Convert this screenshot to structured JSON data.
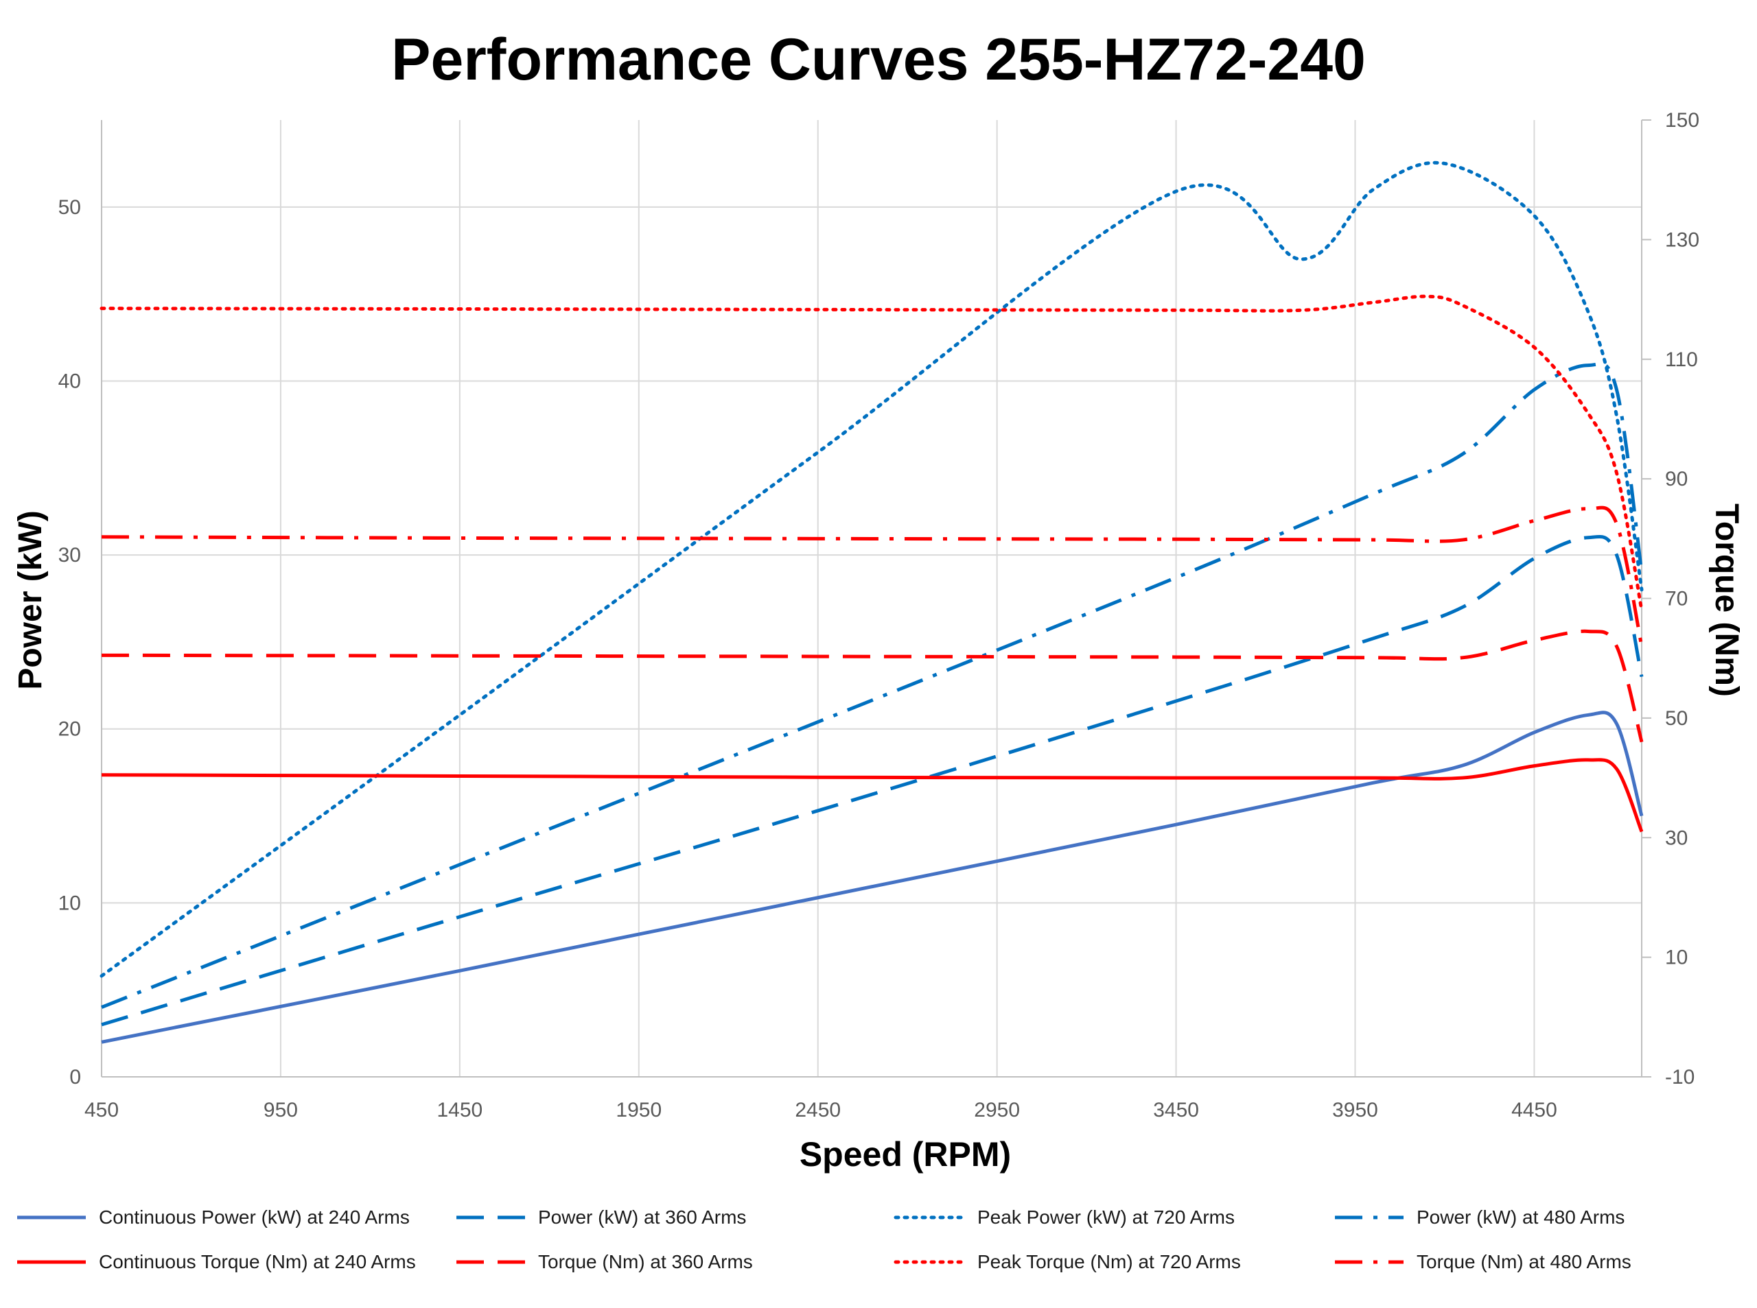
{
  "chart_data": {
    "type": "line",
    "title": "Performance Curves 255-HZ72-240",
    "xlabel": "Speed (RPM)",
    "ylabel_left": "Power (kW)",
    "ylabel_right": "Torque (Nm)",
    "xlim": [
      450,
      4750
    ],
    "ylim_left": [
      0,
      55
    ],
    "ylim_right": [
      -10,
      150
    ],
    "x_ticks": [
      450,
      950,
      1450,
      1950,
      2450,
      2950,
      3450,
      3950,
      4450
    ],
    "y_left_ticks": [
      0,
      10,
      20,
      30,
      40,
      50
    ],
    "y_right_ticks": [
      -10,
      10,
      30,
      50,
      70,
      90,
      110,
      130,
      150
    ],
    "grid": true,
    "legend_position": "bottom",
    "series": [
      {
        "name": "Continuous Power (kW) at 240 Arms",
        "axis": "left",
        "color": "#4472C4",
        "dash": "solid",
        "x": [
          450,
          1450,
          2450,
          3450,
          4000,
          4250,
          4450,
          4600,
          4680,
          4750
        ],
        "y": [
          2.0,
          6.1,
          10.3,
          14.5,
          16.9,
          17.9,
          19.8,
          20.8,
          20.3,
          15.0
        ]
      },
      {
        "name": "Power (kW) at 360 Arms",
        "axis": "left",
        "color": "#0070C0",
        "dash": "dash",
        "x": [
          450,
          1450,
          2450,
          3450,
          4000,
          4250,
          4450,
          4600,
          4680,
          4750
        ],
        "y": [
          3.0,
          9.2,
          15.3,
          21.6,
          25.2,
          27.0,
          29.8,
          31.0,
          30.0,
          23.0
        ]
      },
      {
        "name": "Peak Power (kW) at 720 Arms",
        "axis": "left",
        "color": "#0070C0",
        "dash": "dot",
        "x": [
          450,
          1450,
          2450,
          3450,
          3800,
          4000,
          4200,
          4450,
          4600,
          4680,
          4750
        ],
        "y": [
          5.8,
          20.8,
          35.9,
          50.9,
          47.0,
          51.0,
          52.5,
          49.5,
          44.0,
          38.0,
          28.0
        ]
      },
      {
        "name": "Power (kW) at 480 Arms",
        "axis": "left",
        "color": "#0070C0",
        "dash": "dashdot",
        "x": [
          450,
          1450,
          2450,
          3450,
          4000,
          4250,
          4450,
          4600,
          4680,
          4750
        ],
        "y": [
          4.0,
          12.2,
          20.4,
          28.7,
          33.5,
          35.8,
          39.5,
          40.9,
          39.5,
          29.0
        ]
      },
      {
        "name": "Continuous Torque (Nm) at 240 Arms",
        "axis": "right",
        "color": "#FF0000",
        "dash": "solid",
        "x": [
          450,
          1450,
          2450,
          3450,
          4000,
          4250,
          4450,
          4600,
          4680,
          4750
        ],
        "y": [
          40.5,
          40.3,
          40.1,
          40.0,
          40.0,
          40.0,
          42.0,
          43.0,
          41.5,
          31.0
        ]
      },
      {
        "name": "Torque (Nm) at 360 Arms",
        "axis": "right",
        "color": "#FF0000",
        "dash": "dash",
        "x": [
          450,
          1450,
          2450,
          3450,
          4000,
          4250,
          4450,
          4600,
          4680,
          4750
        ],
        "y": [
          60.5,
          60.4,
          60.3,
          60.2,
          60.1,
          60.1,
          63.0,
          64.5,
          62.0,
          46.0
        ]
      },
      {
        "name": "Peak Torque (Nm) at 720 Arms",
        "axis": "right",
        "color": "#FF0000",
        "dash": "dot",
        "x": [
          450,
          1450,
          2450,
          3450,
          3800,
          4000,
          4150,
          4250,
          4450,
          4600,
          4680,
          4750
        ],
        "y": [
          118.5,
          118.4,
          118.3,
          118.2,
          118.2,
          119.5,
          120.5,
          119.0,
          112.0,
          101.0,
          91.0,
          68.0
        ]
      },
      {
        "name": "Torque (Nm) at 480 Arms",
        "axis": "right",
        "color": "#FF0000",
        "dash": "dashdot",
        "x": [
          450,
          1450,
          2450,
          3450,
          4000,
          4250,
          4450,
          4600,
          4680,
          4750
        ],
        "y": [
          80.3,
          80.1,
          80.0,
          79.9,
          79.8,
          79.8,
          83.0,
          85.0,
          82.5,
          62.0
        ]
      }
    ]
  }
}
